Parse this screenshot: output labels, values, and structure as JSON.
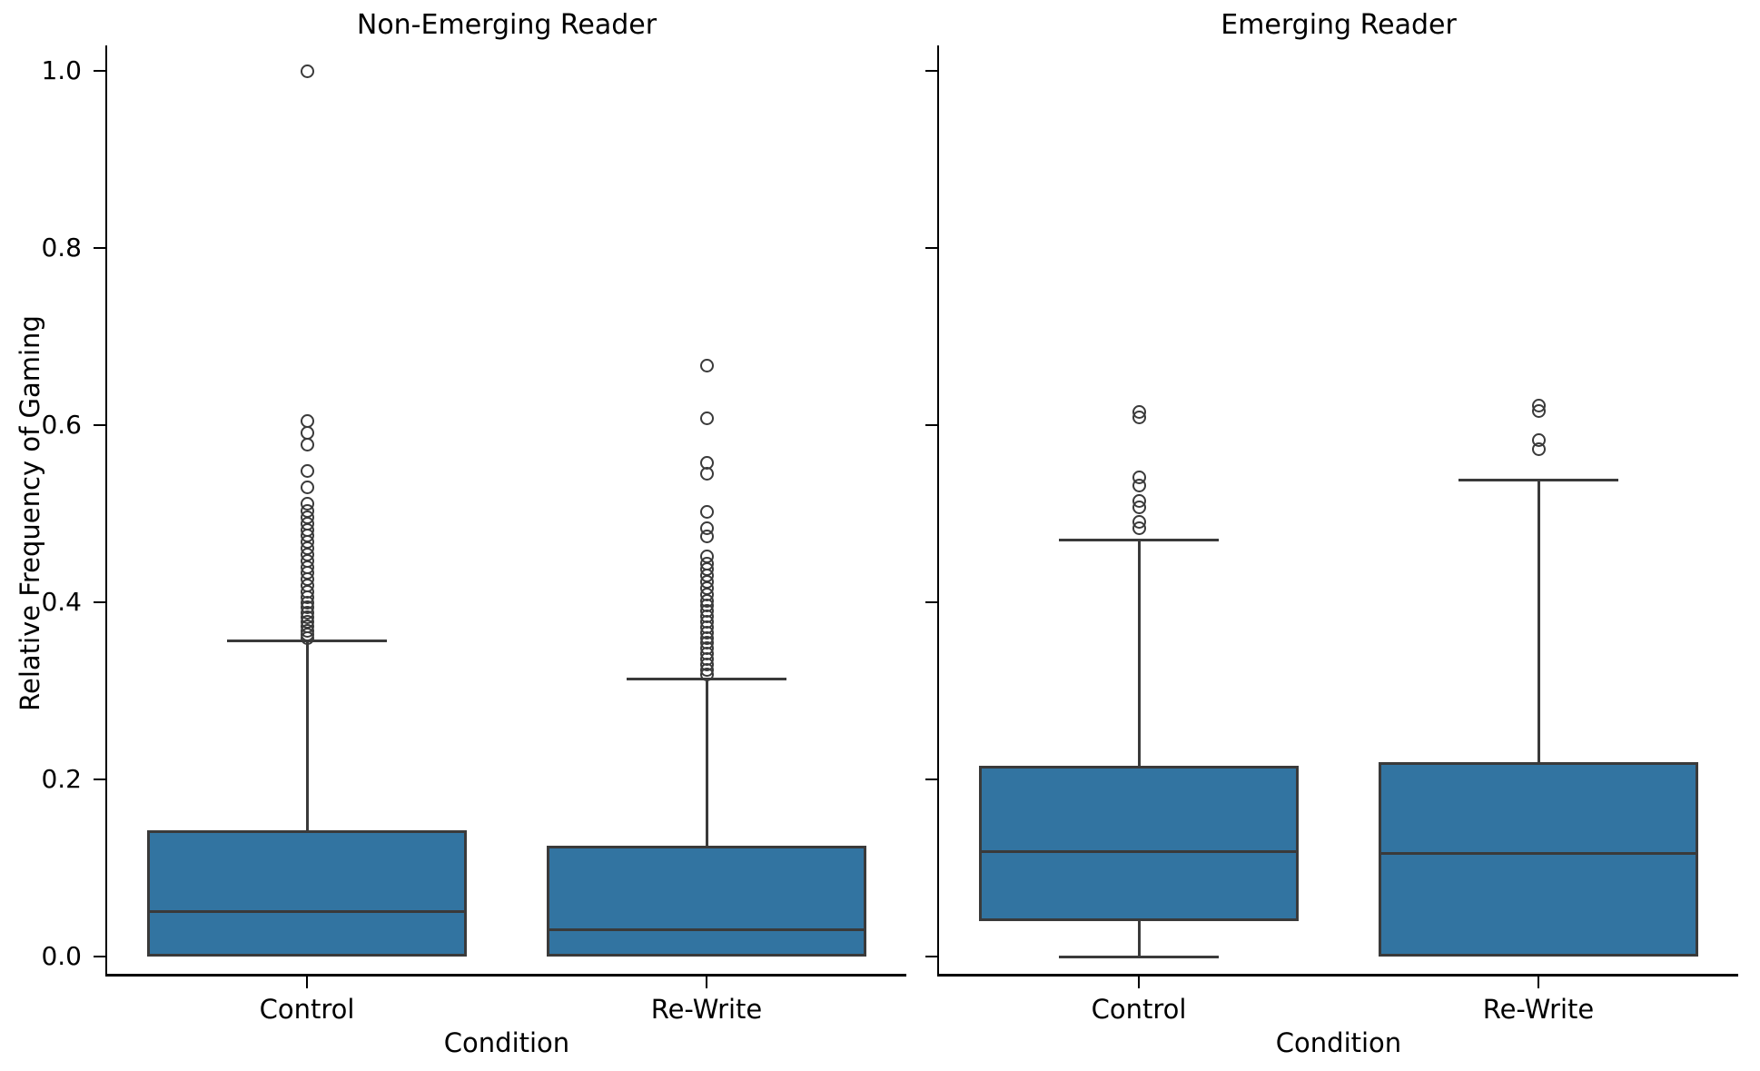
{
  "figure": {
    "y_axis_label": "Relative Frequency of Gaming",
    "box_fill_color": "#3274A1",
    "box_edge_color": "#3A3A3A",
    "axis_color": "#000000"
  },
  "chart_data": [
    {
      "type": "boxplot",
      "title": "Non-Emerging Reader",
      "xlabel": "Condition",
      "ylabel": "Relative Frequency of Gaming",
      "categories": [
        "Control",
        "Re-Write"
      ],
      "ylim": [
        0.0,
        1.0
      ],
      "yticks": [
        "1.0",
        "0.8",
        "0.6",
        "0.4",
        "0.2",
        "0.0"
      ],
      "ytick_values": [
        1.0,
        0.8,
        0.6,
        0.4,
        0.2,
        0.0
      ],
      "grid": false,
      "legend": "none",
      "boxes": [
        {
          "category": "Control",
          "q1": 0.0,
          "median": 0.051,
          "q3": 0.143,
          "whisker_low": null,
          "whisker_high": 0.356,
          "fliers": [
            1.0,
            0.605,
            0.591,
            0.578,
            0.548,
            0.53,
            0.511,
            0.503,
            0.496,
            0.489,
            0.482,
            0.475,
            0.468,
            0.461,
            0.454,
            0.447,
            0.44,
            0.433,
            0.426,
            0.419,
            0.412,
            0.406,
            0.4,
            0.394,
            0.388,
            0.383,
            0.378,
            0.373,
            0.368,
            0.364,
            0.36
          ]
        },
        {
          "category": "Re-Write",
          "q1": 0.0,
          "median": 0.03,
          "q3": 0.125,
          "whisker_low": null,
          "whisker_high": 0.313,
          "fliers": [
            0.667,
            0.608,
            0.557,
            0.545,
            0.502,
            0.484,
            0.474,
            0.452,
            0.444,
            0.437,
            0.43,
            0.423,
            0.416,
            0.409,
            0.402,
            0.396,
            0.39,
            0.384,
            0.378,
            0.372,
            0.366,
            0.36,
            0.354,
            0.348,
            0.342,
            0.336,
            0.33,
            0.324,
            0.318
          ]
        }
      ]
    },
    {
      "type": "boxplot",
      "title": "Emerging Reader",
      "xlabel": "Condition",
      "ylabel": "Relative Frequency of Gaming",
      "categories": [
        "Control",
        "Re-Write"
      ],
      "ylim": [
        0.0,
        1.0
      ],
      "yticks": [],
      "ytick_values": [
        1.0,
        0.8,
        0.6,
        0.4,
        0.2,
        0.0
      ],
      "grid": false,
      "legend": "none",
      "boxes": [
        {
          "category": "Control",
          "q1": 0.04,
          "median": 0.118,
          "q3": 0.215,
          "whisker_low": 0.0,
          "whisker_high": 0.47,
          "fliers": [
            0.615,
            0.609,
            0.541,
            0.532,
            0.514,
            0.507,
            0.491,
            0.484
          ]
        },
        {
          "category": "Re-Write",
          "q1": 0.0,
          "median": 0.116,
          "q3": 0.219,
          "whisker_low": null,
          "whisker_high": 0.538,
          "fliers": [
            0.622,
            0.616,
            0.583,
            0.573
          ]
        }
      ]
    }
  ]
}
